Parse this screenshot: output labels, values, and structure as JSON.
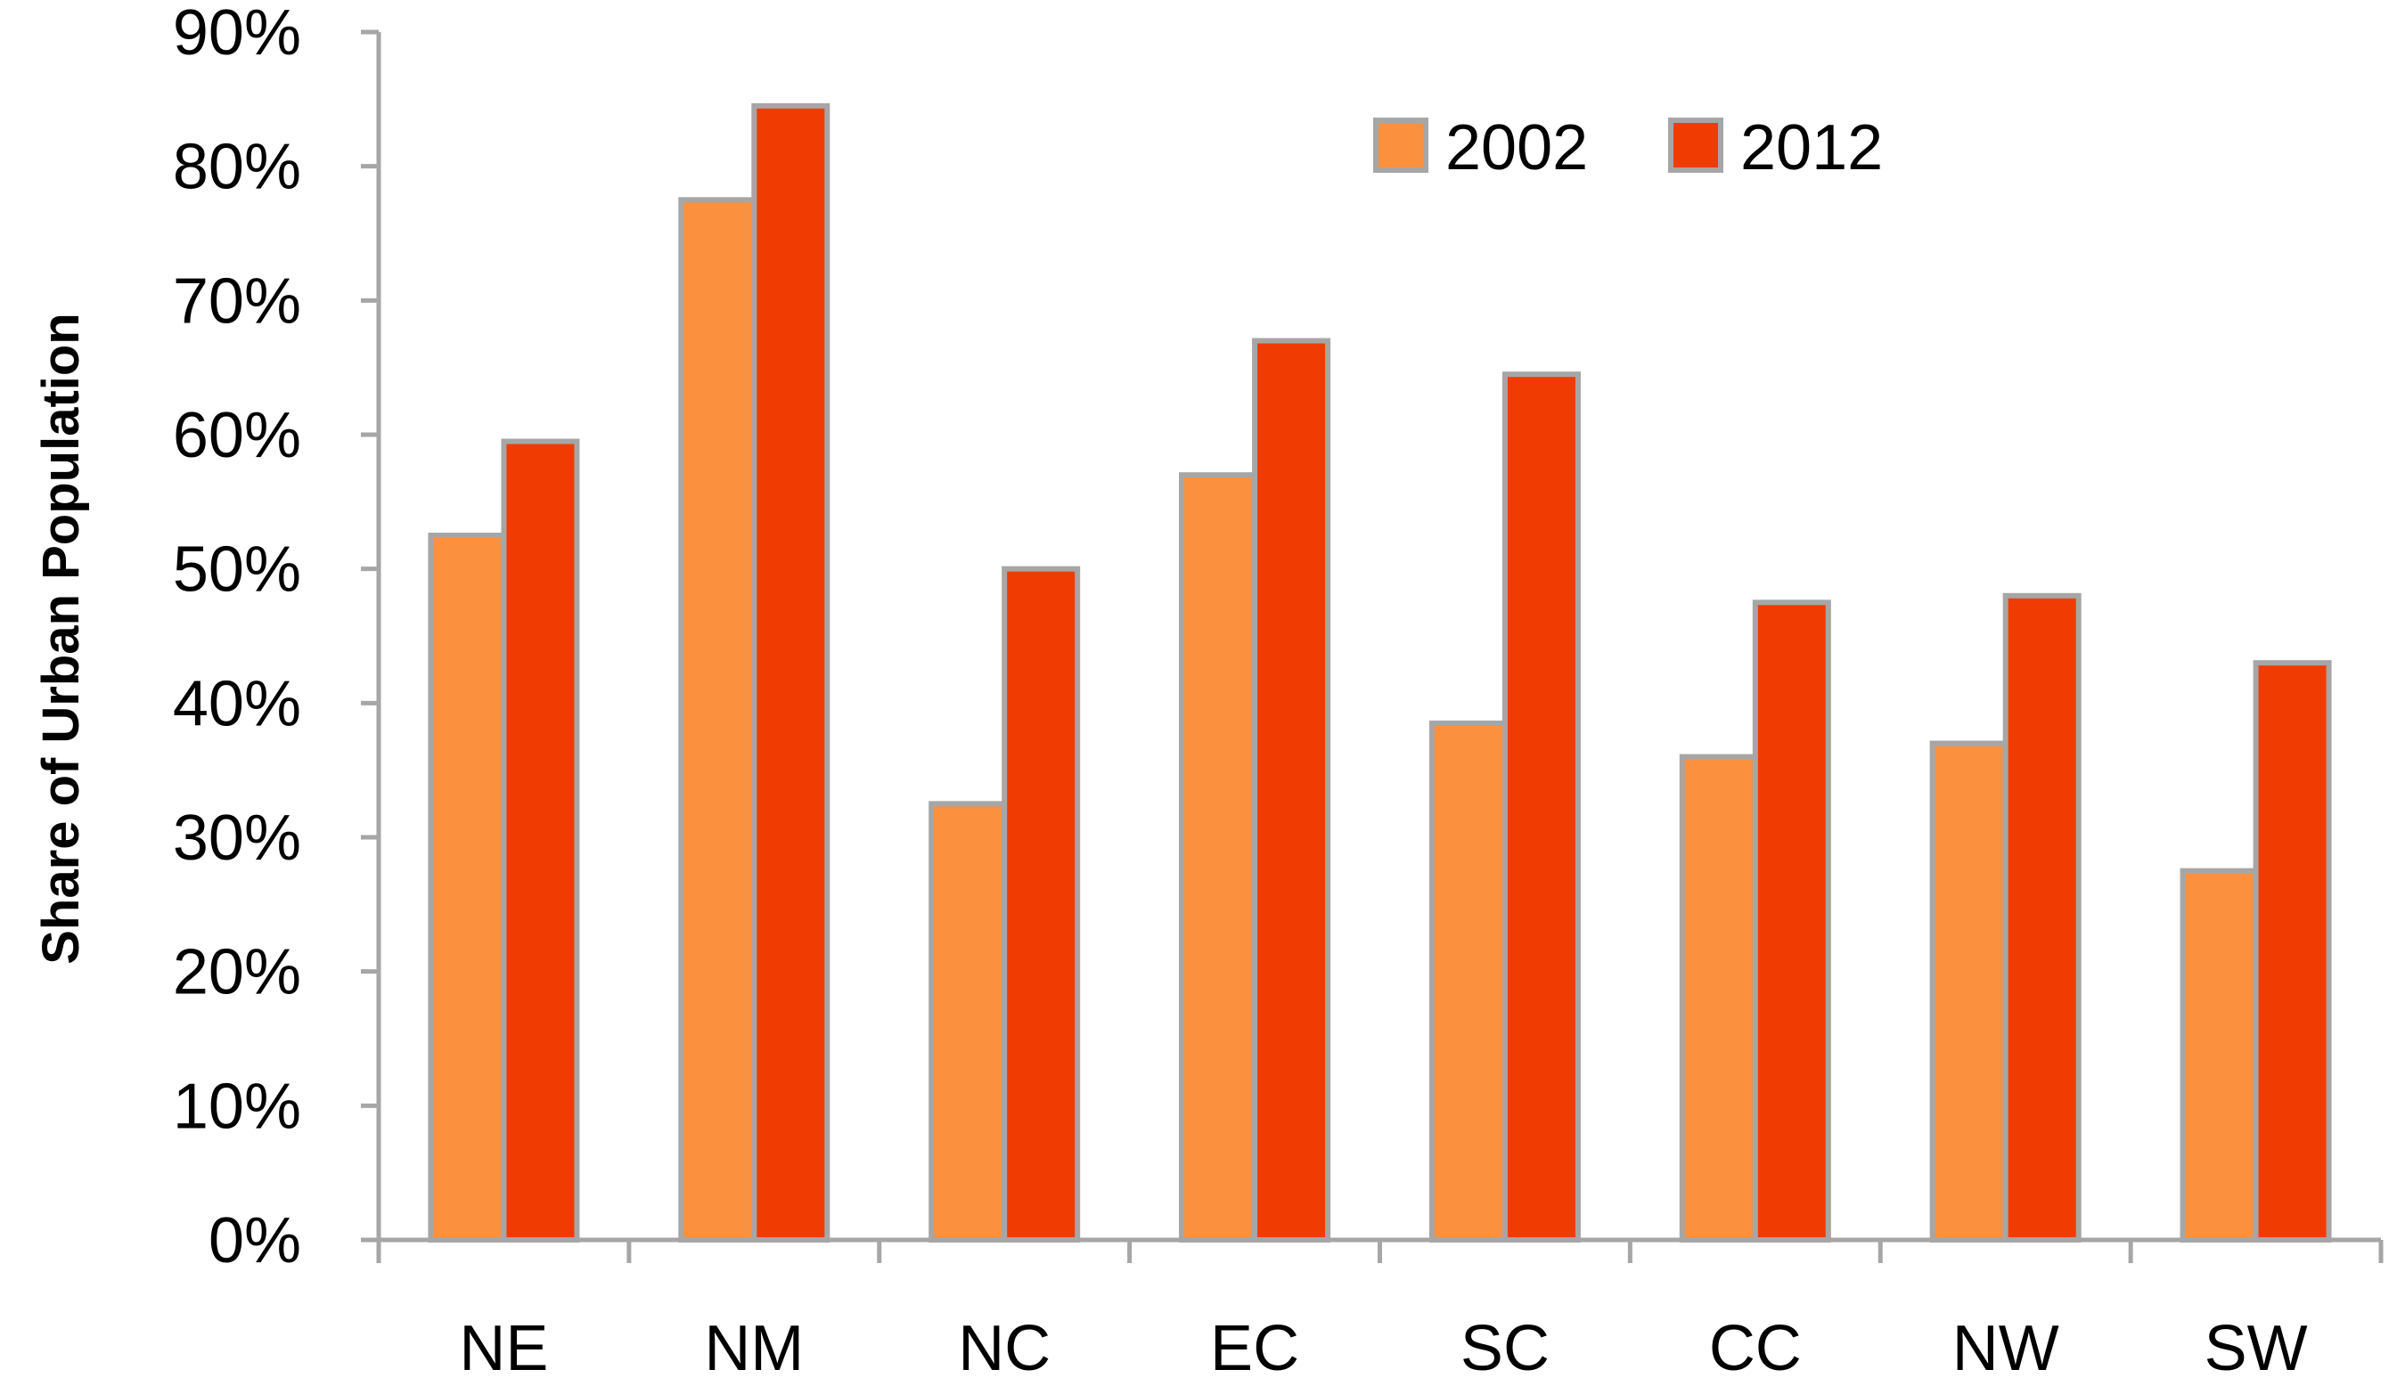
{
  "chart_data": {
    "type": "bar",
    "title": "",
    "xlabel": "",
    "ylabel": "Share of Urban Population",
    "ylim": [
      0,
      90
    ],
    "y_ticks": [
      0,
      10,
      20,
      30,
      40,
      50,
      60,
      70,
      80,
      90
    ],
    "y_tick_suffix": "%",
    "grid": false,
    "legend_position": "top-right",
    "categories": [
      "NE",
      "NM",
      "NC",
      "EC",
      "SC",
      "CC",
      "NW",
      "SW"
    ],
    "series": [
      {
        "name": "2002",
        "color": "#FB913E",
        "values": [
          52.5,
          77.5,
          32.5,
          57,
          38.5,
          36,
          37,
          27.5
        ]
      },
      {
        "name": "2012",
        "color": "#F03C02",
        "values": [
          59.5,
          84.5,
          50,
          67,
          64.5,
          47.5,
          48,
          43
        ]
      }
    ],
    "bar_border_color": "#A6A6A6",
    "axis_color": "#A6A6A6"
  }
}
